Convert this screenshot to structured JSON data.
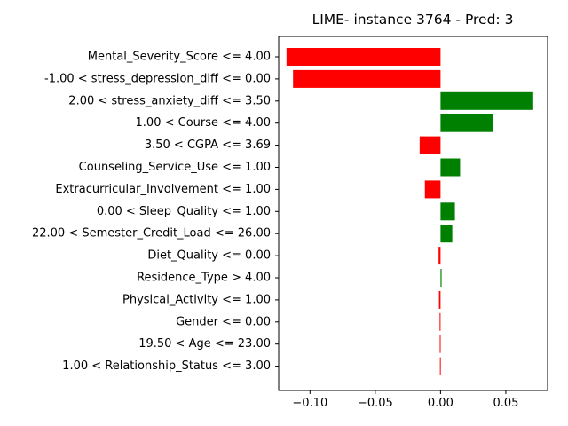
{
  "chart_data": {
    "type": "bar",
    "orientation": "horizontal",
    "title": "LIME- instance 3764 - Pred: 3",
    "xlabel": "",
    "ylabel": "",
    "xlim": [
      -0.124,
      0.082
    ],
    "xticks": [
      -0.1,
      -0.05,
      0.0,
      0.05
    ],
    "xtick_labels": [
      "−0.10",
      "−0.05",
      "0.00",
      "0.05"
    ],
    "grid": false,
    "legend": "none",
    "positive_color": "#008000",
    "negative_color": "#ff0000",
    "categories": [
      "Mental_Severity_Score <= 4.00",
      "-1.00 < stress_depression_diff <= 0.00",
      "2.00 < stress_anxiety_diff <= 3.50",
      "1.00 < Course <= 4.00",
      "3.50 < CGPA <= 3.69",
      "Counseling_Service_Use <= 1.00",
      "Extracurricular_Involvement <= 1.00",
      "0.00 < Sleep_Quality <= 1.00",
      "22.00 < Semester_Credit_Load <= 26.00",
      "Diet_Quality <= 0.00",
      "Residence_Type > 4.00",
      "Physical_Activity <= 1.00",
      "Gender <= 0.00",
      "19.50 < Age <= 23.00",
      "1.00 < Relationship_Status <= 3.00"
    ],
    "values": [
      -0.118,
      -0.113,
      0.071,
      0.04,
      -0.016,
      0.015,
      -0.012,
      0.011,
      0.009,
      -0.0015,
      0.0008,
      -0.0012,
      -0.0007,
      -0.0006,
      -0.0005
    ]
  }
}
